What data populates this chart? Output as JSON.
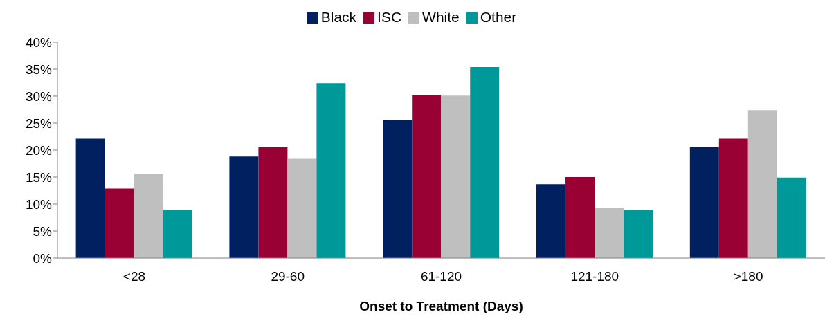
{
  "chart_data": {
    "type": "bar",
    "xlabel": "Onset to Treatment (Days)",
    "categories": [
      "<28",
      "29-60",
      "61-120",
      "121-180",
      ">180"
    ],
    "series": [
      {
        "name": "Black",
        "color": "#002060",
        "values": [
          22.1,
          18.8,
          25.5,
          13.7,
          20.5
        ]
      },
      {
        "name": "ISC",
        "color": "#990033",
        "values": [
          12.9,
          20.5,
          30.2,
          15.0,
          22.1
        ]
      },
      {
        "name": "White",
        "color": "#bfbfbf",
        "values": [
          15.6,
          18.4,
          30.1,
          9.3,
          27.4
        ]
      },
      {
        "name": "Other",
        "color": "#009999",
        "values": [
          8.9,
          32.4,
          35.4,
          8.9,
          14.9
        ]
      }
    ],
    "ylim": [
      0,
      40
    ],
    "yticks": [
      {
        "value": 0,
        "label": "0%"
      },
      {
        "value": 5,
        "label": "5%"
      },
      {
        "value": 10,
        "label": "10%"
      },
      {
        "value": 15,
        "label": "15%"
      },
      {
        "value": 20,
        "label": "20%"
      },
      {
        "value": 25,
        "label": "25%"
      },
      {
        "value": 30,
        "label": "30%"
      },
      {
        "value": 35,
        "label": "35%"
      },
      {
        "value": 40,
        "label": "40%"
      }
    ],
    "grid": false,
    "legend": "top"
  }
}
